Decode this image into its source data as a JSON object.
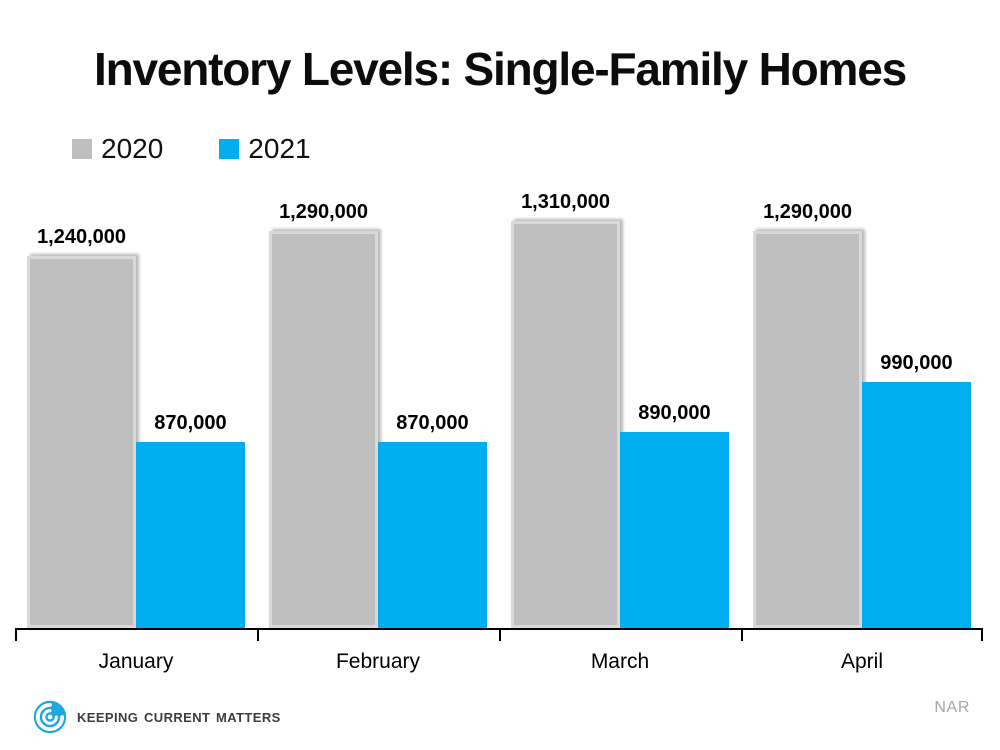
{
  "title": "Inventory Levels: Single-Family Homes",
  "source": "NAR",
  "brand": {
    "logo_text": "Keeping Current Matters"
  },
  "colors": {
    "bar_2020": "#bfbfbf",
    "bar_2020_border": "#d9d9d9",
    "bar_2021": "#00aeef",
    "axis": "#000000",
    "title_text": "#0c0c0c",
    "source_text": "#a6a6a6",
    "logo_blue": "#1ea7e0",
    "logo_text": "#3d3d3d"
  },
  "chart_data": {
    "type": "bar",
    "title": "Inventory Levels: Single-Family Homes",
    "categories": [
      "January",
      "February",
      "March",
      "April"
    ],
    "series": [
      {
        "name": "2020",
        "color": "#bfbfbf",
        "values": [
          1240000,
          1290000,
          1310000,
          1290000
        ],
        "value_labels": [
          "1,240,000",
          "1,290,000",
          "1,310,000",
          "1,290,000"
        ]
      },
      {
        "name": "2021",
        "color": "#00aeef",
        "values": [
          870000,
          870000,
          890000,
          990000
        ],
        "value_labels": [
          "870,000",
          "870,000",
          "890,000",
          "990,000"
        ]
      }
    ],
    "ylim": [
      500000,
      1380000
    ],
    "grid": false,
    "legend_position": "top-left",
    "xlabel": "",
    "ylabel": ""
  }
}
